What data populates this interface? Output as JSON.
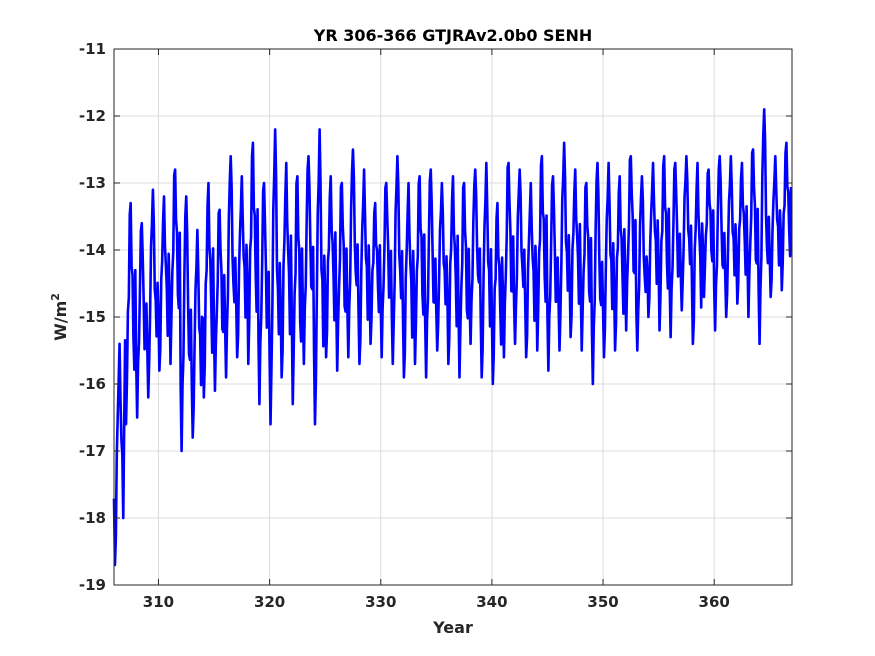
{
  "chart_data": {
    "type": "line",
    "title": "YR 306-366 GTJRAv2.0b0 SENH",
    "xlabel": "Year",
    "ylabel_base": "W/m",
    "ylabel_exp": "2",
    "xlim": [
      306,
      367
    ],
    "ylim": [
      -19,
      -11
    ],
    "xticks": [
      310,
      320,
      330,
      340,
      350,
      360
    ],
    "xtick_labels": [
      "310",
      "320",
      "330",
      "340",
      "350",
      "360"
    ],
    "yticks": [
      -19,
      -18,
      -17,
      -16,
      -15,
      -14,
      -13,
      -12,
      -11
    ],
    "ytick_labels": [
      "-19",
      "-18",
      "-17",
      "-16",
      "-15",
      "-14",
      "-13",
      "-12",
      "-11"
    ],
    "grid": true,
    "line_color": "#0000ff",
    "sampling": "monthly",
    "series": [
      {
        "x_start": 306.0,
        "x_step": 0.08333,
        "annual_min": [
          -18.7,
          -16.6,
          -16.5,
          -16.2,
          -15.8,
          -15.7,
          -17.0,
          -16.8,
          -16.2,
          -16.1,
          -15.9,
          -15.6,
          -15.7,
          -16.3,
          -16.6,
          -15.9,
          -16.3,
          -15.7,
          -16.6,
          -15.6,
          -15.8,
          -15.6,
          -15.7,
          -15.4,
          -15.6,
          -15.7,
          -15.9,
          -15.7,
          -15.9,
          -15.5,
          -15.7,
          -15.9,
          -15.4,
          -15.9,
          -16.0,
          -15.6,
          -15.4,
          -15.6,
          -15.5,
          -15.8,
          -15.5,
          -15.3,
          -15.5,
          -16.0,
          -15.6,
          -15.5,
          -15.2,
          -15.5,
          -15.0,
          -15.2,
          -15.3,
          -14.9,
          -15.4,
          -14.7,
          -15.2,
          -15.0,
          -14.8,
          -15.0,
          -15.4,
          -14.7,
          -14.6
        ],
        "annual_max": [
          -15.4,
          -13.3,
          -13.6,
          -13.1,
          -13.2,
          -12.8,
          -13.2,
          -13.7,
          -13.0,
          -13.4,
          -12.6,
          -12.9,
          -12.4,
          -13.0,
          -12.2,
          -12.7,
          -12.9,
          -12.6,
          -12.2,
          -12.9,
          -13.0,
          -12.5,
          -12.8,
          -13.3,
          -13.0,
          -12.6,
          -13.0,
          -12.9,
          -12.8,
          -13.0,
          -12.9,
          -13.0,
          -12.8,
          -12.7,
          -13.3,
          -12.7,
          -12.8,
          -13.0,
          -12.6,
          -12.9,
          -12.4,
          -12.8,
          -13.0,
          -12.7,
          -12.7,
          -12.9,
          -12.6,
          -12.9,
          -12.7,
          -12.6,
          -12.7,
          -12.6,
          -12.7,
          -12.8,
          -12.6,
          -12.6,
          -12.7,
          -12.5,
          -11.9,
          -12.6,
          -12.4
        ]
      }
    ]
  }
}
